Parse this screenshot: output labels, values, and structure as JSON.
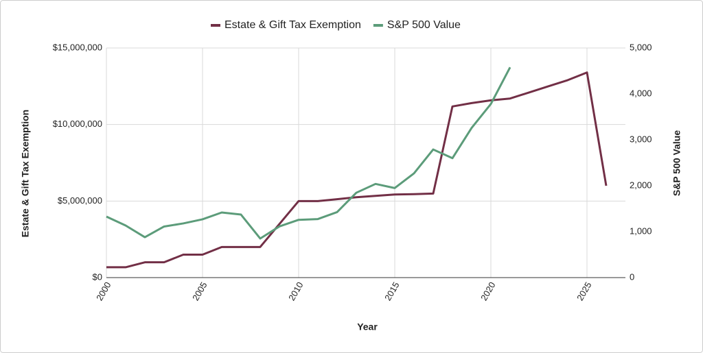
{
  "chart_data": {
    "type": "line",
    "x_label": "Year",
    "y_label": "Estate & Gift Tax Exemption",
    "y2_label": "S&P 500 Value",
    "x": [
      2000,
      2001,
      2002,
      2003,
      2004,
      2005,
      2006,
      2007,
      2008,
      2009,
      2010,
      2011,
      2012,
      2013,
      2014,
      2015,
      2016,
      2017,
      2018,
      2019,
      2020,
      2021,
      2022,
      2023,
      2024,
      2025,
      2026
    ],
    "xlim": [
      2000,
      2027
    ],
    "xticks": [
      2000,
      2005,
      2010,
      2015,
      2020,
      2025
    ],
    "ylim": [
      0,
      15000000
    ],
    "yticks": [
      {
        "value": 0,
        "label": "$0"
      },
      {
        "value": 5000000,
        "label": "$5,000,000"
      },
      {
        "value": 10000000,
        "label": "$10,000,000"
      },
      {
        "value": 15000000,
        "label": "$15,000,000"
      }
    ],
    "y2lim": [
      0,
      5000
    ],
    "y2ticks": [
      0,
      {
        "value": 1000,
        "label": "1,000"
      },
      {
        "value": 2000,
        "label": "2,000"
      },
      {
        "value": 3000,
        "label": "3,000"
      },
      {
        "value": 4000,
        "label": "4,000"
      },
      {
        "value": 5000,
        "label": "5,000"
      }
    ],
    "grid": true,
    "legend": "top",
    "series": [
      {
        "name": "Estate & Gift Tax Exemption",
        "color": "#722f46",
        "values": [
          675000,
          675000,
          1000000,
          1000000,
          1500000,
          1500000,
          2000000,
          2000000,
          2000000,
          3500000,
          5000000,
          5000000,
          5120000,
          5250000,
          5340000,
          5430000,
          5450000,
          5490000,
          11180000,
          11400000,
          11580000,
          11700000,
          12100000,
          12500000,
          12900000,
          13400000,
          6000000
        ]
      },
      {
        "name": "S&P 500 Value",
        "color": "#5c9c7a",
        "axis": "y2",
        "values": [
          1328,
          1134,
          880,
          1112,
          1180,
          1270,
          1418,
          1373,
          851,
          1115,
          1258,
          1275,
          1426,
          1848,
          2040,
          1950,
          2270,
          2790,
          2600,
          3260,
          3780,
          4580,
          null,
          null,
          null,
          null,
          null
        ]
      }
    ]
  }
}
